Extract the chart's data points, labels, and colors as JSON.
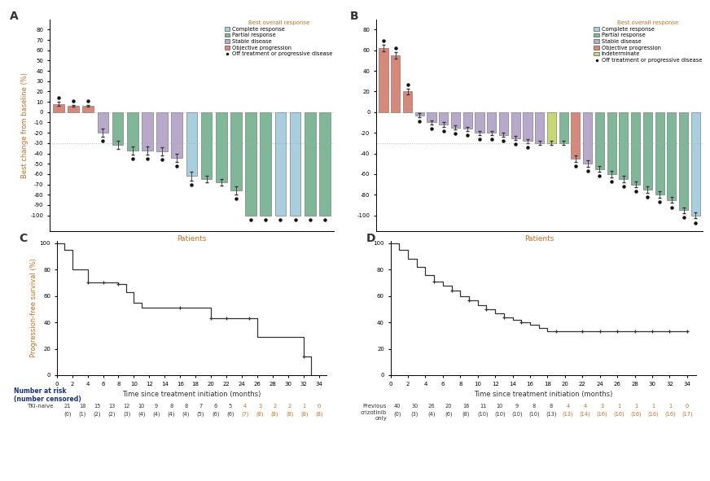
{
  "c_complete": "#a8cfe0",
  "c_partial": "#7fb898",
  "c_stable": "#b8a8cc",
  "c_progression": "#d88878",
  "c_indeterminate": "#c8d870",
  "panel_A_vals": [
    8,
    6,
    6,
    -20,
    -32,
    -37,
    -37,
    -38,
    -44,
    -62,
    -65,
    -68,
    -76,
    -100,
    -100,
    -100,
    -100,
    -100,
    -100
  ],
  "panel_A_color_keys": [
    "prog",
    "prog",
    "prog",
    "stable",
    "partial",
    "partial",
    "stable",
    "stable",
    "stable",
    "complete",
    "partial",
    "partial",
    "partial",
    "partial",
    "partial",
    "complete",
    "complete",
    "partial",
    "partial"
  ],
  "panel_A_dots": [
    true,
    true,
    true,
    true,
    false,
    true,
    true,
    true,
    true,
    true,
    false,
    false,
    true,
    true,
    true,
    true,
    true,
    true,
    true
  ],
  "panel_A_err": [
    2,
    1,
    1,
    4,
    4,
    4,
    4,
    4,
    4,
    4,
    3,
    3,
    4,
    0,
    0,
    0,
    0,
    0,
    0
  ],
  "panel_B_vals": [
    62,
    55,
    20,
    -3,
    -10,
    -12,
    -15,
    -16,
    -20,
    -20,
    -22,
    -25,
    -28,
    -30,
    -30,
    -30,
    -45,
    -50,
    -55,
    -60,
    -65,
    -70,
    -75,
    -80,
    -85,
    -95,
    -100
  ],
  "panel_B_color_keys": [
    "prog",
    "prog",
    "prog",
    "stable",
    "stable",
    "stable",
    "stable",
    "stable",
    "stable",
    "stable",
    "stable",
    "stable",
    "stable",
    "stable",
    "indet",
    "partial",
    "prog",
    "stable",
    "partial",
    "partial",
    "partial",
    "partial",
    "partial",
    "partial",
    "partial",
    "partial",
    "complete"
  ],
  "panel_B_dots": [
    true,
    true,
    true,
    true,
    true,
    true,
    true,
    true,
    true,
    true,
    true,
    true,
    true,
    false,
    false,
    false,
    true,
    true,
    true,
    true,
    true,
    true,
    true,
    true,
    true,
    true,
    true
  ],
  "panel_B_err": [
    3,
    3,
    3,
    2,
    2,
    2,
    2,
    2,
    2,
    2,
    2,
    2,
    2,
    2,
    2,
    2,
    3,
    3,
    3,
    3,
    3,
    3,
    3,
    3,
    3,
    3,
    3
  ],
  "C_times": [
    0,
    1,
    2,
    3,
    4,
    6,
    8,
    9,
    10,
    11,
    16,
    20,
    22,
    25,
    26,
    29,
    30,
    32,
    33
  ],
  "C_surv": [
    100,
    95,
    80,
    80,
    70,
    70,
    69,
    63,
    55,
    51,
    51,
    43,
    43,
    43,
    29,
    29,
    29,
    14,
    0
  ],
  "C_censor_x": [
    4,
    6,
    8,
    16,
    20,
    22,
    25,
    32
  ],
  "C_censor_y": [
    70,
    70,
    69,
    51,
    43,
    43,
    43,
    14
  ],
  "D_times": [
    0,
    1,
    2,
    3,
    4,
    5,
    6,
    7,
    8,
    9,
    10,
    11,
    12,
    13,
    14,
    15,
    16,
    17,
    18,
    19,
    20,
    21,
    22,
    23,
    24,
    25,
    26,
    27,
    28,
    29,
    30,
    31,
    32,
    33,
    34
  ],
  "D_surv": [
    100,
    95,
    88,
    82,
    76,
    71,
    68,
    64,
    60,
    57,
    53,
    50,
    47,
    44,
    42,
    40,
    38,
    36,
    33,
    33,
    33,
    33,
    33,
    33,
    33,
    33,
    33,
    33,
    33,
    33,
    33,
    33,
    33,
    33,
    33
  ],
  "D_censor_x": [
    5,
    7,
    9,
    11,
    13,
    15,
    19,
    22,
    24,
    26,
    28,
    30,
    32,
    34
  ],
  "D_censor_y": [
    71,
    64,
    57,
    50,
    44,
    40,
    33,
    33,
    33,
    33,
    33,
    33,
    33,
    33
  ],
  "risk_C_n": [
    21,
    18,
    15,
    13,
    12,
    10,
    9,
    8,
    8,
    7,
    6,
    5,
    4,
    3,
    2,
    2,
    1,
    0
  ],
  "risk_C_c": [
    0,
    1,
    2,
    2,
    3,
    4,
    4,
    4,
    4,
    5,
    6,
    6,
    7,
    8,
    8,
    8,
    8,
    8
  ],
  "risk_D_n": [
    40,
    30,
    26,
    20,
    16,
    11,
    10,
    9,
    8,
    8,
    4,
    4,
    3,
    1,
    1,
    1,
    1,
    0
  ],
  "risk_D_c": [
    0,
    3,
    4,
    6,
    8,
    10,
    10,
    10,
    10,
    13,
    13,
    14,
    16,
    16,
    16,
    16,
    16,
    17
  ],
  "orange_color": "#c87020",
  "navy_color": "#1a3080",
  "dark_color": "#333333"
}
